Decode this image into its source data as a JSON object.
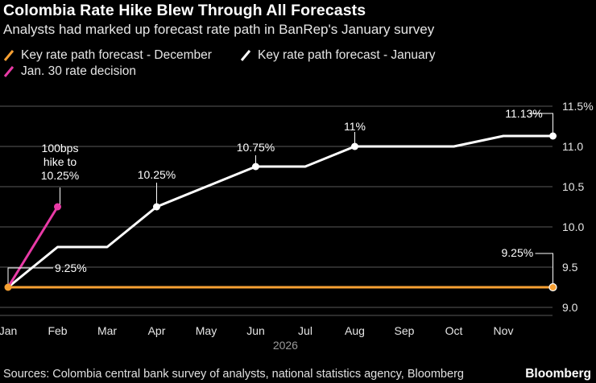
{
  "header": {
    "title": "Colombia Rate Hike Blew Through All Forecasts",
    "subtitle": "Analysts had marked up forecast rate path in BanRep's January survey"
  },
  "legend": {
    "items": [
      {
        "label": "Key rate path forecast - December",
        "color": "#f7a033"
      },
      {
        "label": "Key rate path forecast - January",
        "color": "#ffffff"
      },
      {
        "label": "Jan. 30 rate decision",
        "color": "#e83aa6"
      }
    ]
  },
  "footer": {
    "source": "Sources: Colombia central bank survey of analysts, national statistics agency, Bloomberg",
    "brand": "Bloomberg"
  },
  "chart_data": {
    "type": "line",
    "title": "Colombia Rate Hike Blew Through All Forecasts",
    "subtitle": "Analysts had marked up forecast rate path in BanRep's January survey",
    "xlabel": "2026",
    "ylabel": "",
    "x_ticks": [
      "Jan",
      "Feb",
      "Mar",
      "Apr",
      "May",
      "Jun",
      "Jul",
      "Aug",
      "Sep",
      "Oct",
      "Nov"
    ],
    "y_ticks": [
      "9.0",
      "9.5",
      "10.0",
      "10.5",
      "11.0",
      "11.5%"
    ],
    "y_tick_values": [
      9.0,
      9.5,
      10.0,
      10.5,
      11.0,
      11.5
    ],
    "ylim": [
      8.9,
      11.5
    ],
    "grid": true,
    "legend_position": "top-left",
    "series": [
      {
        "name": "Key rate path forecast - December",
        "color": "#f7a033",
        "x": [
          0,
          11
        ],
        "y": [
          9.25,
          9.25
        ]
      },
      {
        "name": "Key rate path forecast - January",
        "color": "#ffffff",
        "x": [
          0,
          1,
          2,
          3,
          4,
          5,
          6,
          7,
          8,
          9,
          10,
          11
        ],
        "y": [
          9.25,
          9.75,
          9.75,
          10.25,
          10.5,
          10.75,
          10.75,
          11.0,
          11.0,
          11.0,
          11.13,
          11.13
        ]
      },
      {
        "name": "Jan. 30 rate decision",
        "color": "#e83aa6",
        "x": [
          0,
          1
        ],
        "y": [
          9.25,
          10.25
        ]
      }
    ],
    "annotations": [
      {
        "text": "9.25%",
        "x": 0,
        "y": 9.25
      },
      {
        "text": "10.25%",
        "x": 3,
        "y": 10.25
      },
      {
        "text": "10.75%",
        "x": 5,
        "y": 10.75
      },
      {
        "text": "11%",
        "x": 7,
        "y": 11.0
      },
      {
        "text": "11.13%",
        "x": 11,
        "y": 11.13
      },
      {
        "text": "9.25%",
        "x": 11,
        "y": 9.25
      },
      {
        "text": "100bps",
        "x": 1,
        "y": 10.25
      },
      {
        "text": "hike to",
        "x": 1,
        "y": 10.25
      },
      {
        "text": "10.25%",
        "x": 1,
        "y": 10.25
      }
    ]
  }
}
